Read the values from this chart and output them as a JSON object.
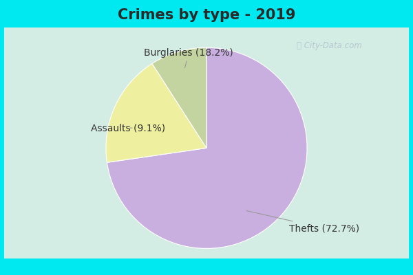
{
  "title": "Crimes by type - 2019",
  "slices": [
    {
      "label": "Thefts",
      "pct": 72.7,
      "color": "#c9aee0"
    },
    {
      "label": "Burglaries",
      "pct": 18.2,
      "color": "#eef0a0"
    },
    {
      "label": "Assaults",
      "pct": 9.1,
      "color": "#c4d4a0"
    }
  ],
  "title_fontsize": 15,
  "label_fontsize": 10,
  "bg_cyan": "#00e8f0",
  "bg_chart": "#d4ede4",
  "watermark": "ⓘ City-Data.com",
  "startangle": 90,
  "title_color": "#2a2a2a"
}
